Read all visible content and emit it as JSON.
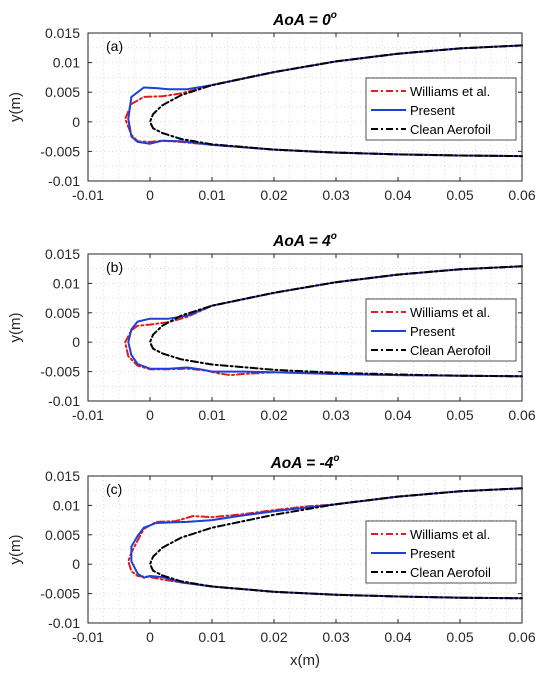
{
  "chart_data": [
    {
      "type": "line",
      "panel_label": "(a)",
      "title_main": "AoA = 0",
      "title_sup": "o",
      "xlabel": "",
      "ylabel": "y(m)",
      "xlim": [
        -0.01,
        0.06
      ],
      "ylim": [
        -0.01,
        0.015
      ],
      "xticks": [
        "-0.01",
        "0",
        "0.01",
        "0.02",
        "0.03",
        "0.04",
        "0.05",
        "0.06"
      ],
      "yticks": [
        "0.015",
        "0.01",
        "0.005",
        "0",
        "-0.005",
        "-0.01"
      ],
      "grid": "dotted",
      "legend_position": "right",
      "series": [
        {
          "name": "Williams et al.",
          "color": "#e41a1c",
          "style": "dashdot",
          "x": [
            0.06,
            0.05,
            0.04,
            0.03,
            0.02,
            0.01,
            0.005,
            0.002,
            -0.001,
            -0.003,
            -0.004,
            -0.003,
            -0.002,
            0.0,
            0.002,
            0.005,
            0.01,
            0.02,
            0.03,
            0.04,
            0.05,
            0.06
          ],
          "y": [
            0.0129,
            0.0124,
            0.0115,
            0.0102,
            0.0084,
            0.0062,
            0.0048,
            0.0043,
            0.0042,
            0.003,
            0.0005,
            -0.0022,
            -0.0033,
            -0.0034,
            -0.0032,
            -0.0034,
            -0.0039,
            -0.0047,
            -0.0052,
            -0.0055,
            -0.0057,
            -0.0058
          ]
        },
        {
          "name": "Present",
          "color": "#1f3fd6",
          "style": "solid",
          "x": [
            0.06,
            0.05,
            0.04,
            0.03,
            0.02,
            0.01,
            0.006,
            0.003,
            0.001,
            -0.001,
            -0.003,
            -0.0035,
            -0.003,
            -0.002,
            0.0,
            0.002,
            0.005,
            0.01,
            0.02,
            0.03,
            0.04,
            0.05,
            0.06
          ],
          "y": [
            0.0129,
            0.0124,
            0.0115,
            0.0102,
            0.0084,
            0.0062,
            0.0055,
            0.0055,
            0.0057,
            0.0058,
            0.0042,
            0.0005,
            -0.0025,
            -0.0034,
            -0.0037,
            -0.0032,
            -0.0033,
            -0.0039,
            -0.0047,
            -0.0052,
            -0.0055,
            -0.0057,
            -0.0058
          ]
        },
        {
          "name": "Clean Aerofoil",
          "color": "#000000",
          "style": "dashdot",
          "x": [
            0.06,
            0.05,
            0.04,
            0.03,
            0.02,
            0.01,
            0.005,
            0.002,
            0.0005,
            0.0,
            0.0005,
            0.002,
            0.005,
            0.01,
            0.02,
            0.03,
            0.04,
            0.05,
            0.06
          ],
          "y": [
            0.0129,
            0.0124,
            0.0115,
            0.0102,
            0.0084,
            0.0062,
            0.0045,
            0.0028,
            0.0013,
            0.0,
            -0.0011,
            -0.0019,
            -0.0029,
            -0.0038,
            -0.0047,
            -0.0052,
            -0.0055,
            -0.0057,
            -0.0058
          ]
        }
      ]
    },
    {
      "type": "line",
      "panel_label": "(b)",
      "title_main": "AoA = 4",
      "title_sup": "o",
      "xlabel": "",
      "ylabel": "y(m)",
      "xlim": [
        -0.01,
        0.06
      ],
      "ylim": [
        -0.01,
        0.015
      ],
      "xticks": [
        "-0.01",
        "0",
        "0.01",
        "0.02",
        "0.03",
        "0.04",
        "0.05",
        "0.06"
      ],
      "yticks": [
        "0.015",
        "0.01",
        "0.005",
        "0",
        "-0.005",
        "-0.01"
      ],
      "grid": "dotted",
      "legend_position": "right",
      "series": [
        {
          "name": "Williams et al.",
          "color": "#e41a1c",
          "style": "dashdot",
          "x": [
            0.06,
            0.05,
            0.04,
            0.03,
            0.02,
            0.01,
            0.006,
            0.003,
            0.0,
            -0.002,
            -0.003,
            -0.004,
            -0.0035,
            -0.002,
            0.0,
            0.003,
            0.006,
            0.009,
            0.011,
            0.013,
            0.015,
            0.02,
            0.03,
            0.04,
            0.05,
            0.06
          ],
          "y": [
            0.0129,
            0.0124,
            0.0115,
            0.0102,
            0.0084,
            0.0062,
            0.0043,
            0.0034,
            0.003,
            0.0028,
            0.002,
            0.0,
            -0.0024,
            -0.004,
            -0.0046,
            -0.0046,
            -0.0045,
            -0.0048,
            -0.0053,
            -0.0056,
            -0.0054,
            -0.0051,
            -0.0054,
            -0.0056,
            -0.0057,
            -0.0058
          ]
        },
        {
          "name": "Present",
          "color": "#1f3fd6",
          "style": "solid",
          "x": [
            0.06,
            0.05,
            0.04,
            0.03,
            0.02,
            0.01,
            0.006,
            0.003,
            0.0,
            -0.002,
            -0.003,
            -0.0035,
            -0.003,
            -0.002,
            0.0,
            0.003,
            0.006,
            0.008,
            0.01,
            0.012,
            0.015,
            0.02,
            0.03,
            0.04,
            0.05,
            0.06
          ],
          "y": [
            0.0129,
            0.0124,
            0.0115,
            0.0102,
            0.0084,
            0.0062,
            0.0045,
            0.004,
            0.004,
            0.0035,
            0.0022,
            0.0,
            -0.0022,
            -0.0037,
            -0.0045,
            -0.0045,
            -0.0043,
            -0.0046,
            -0.005,
            -0.005,
            -0.005,
            -0.0051,
            -0.0054,
            -0.0056,
            -0.0057,
            -0.0058
          ]
        },
        {
          "name": "Clean Aerofoil",
          "color": "#000000",
          "style": "dashdot",
          "x": [
            0.06,
            0.05,
            0.04,
            0.03,
            0.02,
            0.01,
            0.005,
            0.002,
            0.0005,
            0.0,
            0.0005,
            0.002,
            0.005,
            0.01,
            0.02,
            0.03,
            0.04,
            0.05,
            0.06
          ],
          "y": [
            0.0129,
            0.0124,
            0.0115,
            0.0102,
            0.0084,
            0.0062,
            0.0045,
            0.0028,
            0.0013,
            0.0,
            -0.0011,
            -0.0019,
            -0.0029,
            -0.0038,
            -0.0047,
            -0.0052,
            -0.0055,
            -0.0057,
            -0.0058
          ]
        }
      ]
    },
    {
      "type": "line",
      "panel_label": "(c)",
      "title_main": "AoA = -4",
      "title_sup": "o",
      "xlabel": "x(m)",
      "ylabel": "y(m)",
      "xlim": [
        -0.01,
        0.06
      ],
      "ylim": [
        -0.01,
        0.015
      ],
      "xticks": [
        "-0.01",
        "0",
        "0.01",
        "0.02",
        "0.03",
        "0.04",
        "0.05",
        "0.06"
      ],
      "yticks": [
        "0.015",
        "0.01",
        "0.005",
        "0",
        "-0.005",
        "-0.01"
      ],
      "grid": "dotted",
      "legend_position": "right",
      "series": [
        {
          "name": "Williams et al.",
          "color": "#e41a1c",
          "style": "dashdot",
          "x": [
            0.06,
            0.05,
            0.04,
            0.03,
            0.025,
            0.02,
            0.015,
            0.01,
            0.007,
            0.004,
            0.001,
            -0.001,
            -0.002,
            -0.003,
            -0.0035,
            -0.003,
            -0.002,
            0.0,
            0.002,
            0.005,
            0.01,
            0.02,
            0.03,
            0.04,
            0.05,
            0.06
          ],
          "y": [
            0.0129,
            0.0124,
            0.0115,
            0.0102,
            0.0098,
            0.0092,
            0.0085,
            0.008,
            0.0082,
            0.0073,
            0.0072,
            0.006,
            0.004,
            0.002,
            0.0005,
            -0.0012,
            -0.002,
            -0.0022,
            -0.0026,
            -0.0031,
            -0.0038,
            -0.0047,
            -0.0052,
            -0.0055,
            -0.0057,
            -0.0058
          ]
        },
        {
          "name": "Present",
          "color": "#1f3fd6",
          "style": "solid",
          "x": [
            0.06,
            0.05,
            0.04,
            0.03,
            0.02,
            0.015,
            0.01,
            0.006,
            0.003,
            0.001,
            -0.001,
            -0.002,
            -0.003,
            -0.003,
            -0.002,
            -0.001,
            0.0,
            0.002,
            0.005,
            0.01,
            0.02,
            0.03,
            0.04,
            0.05,
            0.06
          ],
          "y": [
            0.0129,
            0.0124,
            0.0115,
            0.0102,
            0.009,
            0.0083,
            0.0075,
            0.0072,
            0.0071,
            0.007,
            0.0062,
            0.0048,
            0.003,
            0.0005,
            -0.0016,
            -0.0023,
            -0.002,
            -0.0022,
            -0.0031,
            -0.0038,
            -0.0047,
            -0.0052,
            -0.0055,
            -0.0057,
            -0.0058
          ]
        },
        {
          "name": "Clean Aerofoil",
          "color": "#000000",
          "style": "dashdot",
          "x": [
            0.06,
            0.05,
            0.04,
            0.03,
            0.02,
            0.01,
            0.005,
            0.002,
            0.0005,
            0.0,
            0.0005,
            0.002,
            0.005,
            0.01,
            0.02,
            0.03,
            0.04,
            0.05,
            0.06
          ],
          "y": [
            0.0129,
            0.0124,
            0.0115,
            0.0102,
            0.0084,
            0.0062,
            0.0045,
            0.0028,
            0.0013,
            0.0,
            -0.0011,
            -0.0019,
            -0.0029,
            -0.0038,
            -0.0047,
            -0.0052,
            -0.0055,
            -0.0057,
            -0.0058
          ]
        }
      ]
    }
  ]
}
